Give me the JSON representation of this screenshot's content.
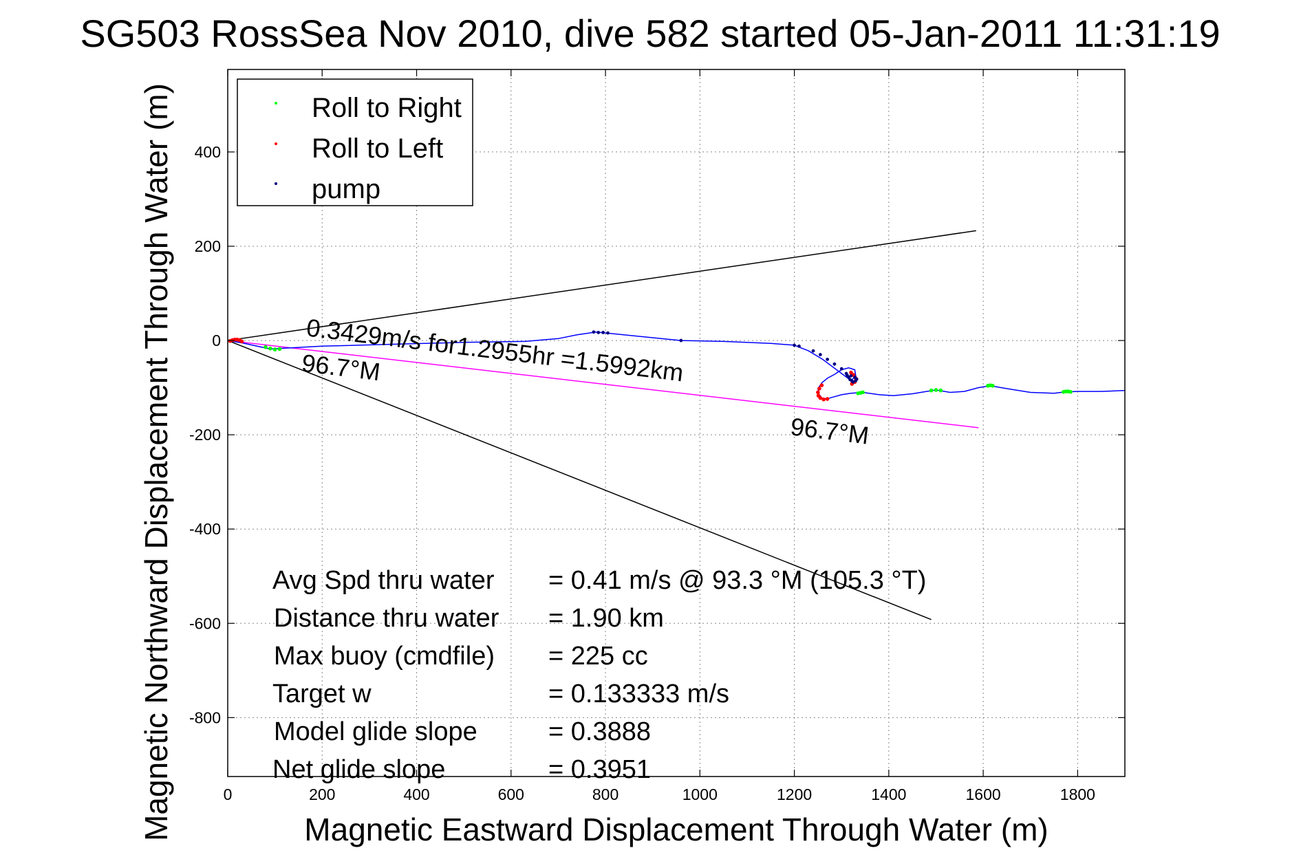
{
  "chart_data": {
    "type": "line",
    "title": "SG503 RossSea Nov 2010, dive 582 started 05-Jan-2011 11:31:19",
    "xlabel": "Magnetic Eastward Displacement Through Water (m)",
    "ylabel": "Magnetic Northward Displacement Through Water (m)",
    "xlim": [
      0,
      1900
    ],
    "ylim": [
      -925,
      575
    ],
    "xticks": [
      0,
      200,
      400,
      600,
      800,
      1000,
      1200,
      1400,
      1600,
      1800
    ],
    "yticks": [
      -800,
      -600,
      -400,
      -200,
      0,
      200,
      400
    ],
    "grid": true,
    "legend_position": "top-left",
    "legend": [
      {
        "label": "Roll to Right",
        "color": "#00ff00"
      },
      {
        "label": "Roll to Left",
        "color": "#ff0000"
      },
      {
        "label": "pump",
        "color": "#000080"
      }
    ],
    "track": {
      "color": "#0000ff",
      "x": [
        0,
        30,
        90,
        200,
        350,
        500,
        630,
        700,
        740,
        780,
        800,
        900,
        960,
        1050,
        1150,
        1200,
        1230,
        1260,
        1280,
        1300,
        1320,
        1330,
        1328,
        1315,
        1300,
        1285,
        1270,
        1258,
        1250,
        1252,
        1260,
        1275,
        1300,
        1320,
        1345,
        1380,
        1410,
        1450,
        1480,
        1500,
        1530,
        1560,
        1590,
        1615,
        1650,
        1700,
        1750,
        1775,
        1800,
        1850,
        1900
      ],
      "y": [
        0,
        -5,
        -18,
        -12,
        -8,
        -4,
        -2,
        4,
        12,
        18,
        16,
        6,
        0,
        -2,
        -6,
        -10,
        -22,
        -40,
        -55,
        -70,
        -85,
        -75,
        -62,
        -58,
        -62,
        -72,
        -80,
        -90,
        -102,
        -114,
        -124,
        -122,
        -115,
        -112,
        -110,
        -115,
        -117,
        -113,
        -108,
        -105,
        -110,
        -108,
        -100,
        -96,
        -102,
        -110,
        -112,
        -109,
        -108,
        -108,
        -106
      ]
    },
    "roll_right": {
      "color": "#00ff00",
      "x": [
        80,
        90,
        100,
        110,
        1335,
        1340,
        1345,
        1490,
        1500,
        1510,
        1610,
        1615,
        1620,
        1770,
        1775,
        1780,
        1785
      ],
      "y": [
        -14,
        -17,
        -19,
        -18,
        -112,
        -111,
        -110,
        -106,
        -105,
        -106,
        -96,
        -95,
        -96,
        -109,
        -108,
        -108,
        -109
      ]
    },
    "roll_left": {
      "color": "#ff0000",
      "x": [
        5,
        10,
        15,
        20,
        25,
        30,
        1320,
        1325,
        1330,
        1328,
        1322,
        1258,
        1253,
        1250,
        1251,
        1255,
        1262,
        1270
      ],
      "y": [
        -1,
        1,
        2,
        2,
        1,
        -2,
        -68,
        -73,
        -80,
        -88,
        -92,
        -95,
        -102,
        -110,
        -117,
        -122,
        -125,
        -124
      ]
    },
    "pump": {
      "color": "#000080",
      "x": [
        775,
        785,
        795,
        805,
        960,
        1200,
        1210,
        1240,
        1255,
        1270,
        1285,
        1300,
        1310,
        1315,
        1318,
        1322,
        1325,
        1330,
        1332,
        1328,
        1320,
        1312
      ],
      "y": [
        18,
        17,
        17,
        16,
        0,
        -10,
        -12,
        -22,
        -30,
        -40,
        -50,
        -60,
        -70,
        -78,
        -83,
        -86,
        -88,
        -85,
        -82,
        -78,
        -75,
        -74
      ]
    },
    "reference_lines": [
      {
        "name": "upper",
        "color": "#000000",
        "x": [
          0,
          1585
        ],
        "y": [
          0,
          233
        ]
      },
      {
        "name": "lower",
        "color": "#000000",
        "x": [
          0,
          1490
        ],
        "y": [
          0,
          -592
        ]
      },
      {
        "name": "heading",
        "color": "#ff00ff",
        "x": [
          0,
          1590
        ],
        "y": [
          0,
          -185
        ]
      }
    ],
    "annotations": [
      {
        "id": "speed",
        "text": "0.3429m/s for1.2955hr =1.5992km",
        "x": 165,
        "y": 10,
        "rotate": 6.9
      },
      {
        "id": "hdg_near",
        "text": "96.7°M",
        "x": 155,
        "y": -65,
        "rotate": 6.9
      },
      {
        "id": "hdg_far",
        "text": "96.7°M",
        "x": 1190,
        "y": -200,
        "rotate": 6.9
      }
    ]
  },
  "stats": [
    {
      "label": "Avg Spd thru water",
      "value": "=  0.41 m/s @  93.3 °M (105.3 °T)"
    },
    {
      "label": "Distance thru water",
      "value": "=  1.90 km"
    },
    {
      "label": "Max buoy (cmdfile)",
      "value": "= 225 cc"
    },
    {
      "label": "Target w",
      "value": "= 0.133333 m/s"
    },
    {
      "label": "Model glide slope",
      "value": "= 0.3888"
    },
    {
      "label": "Net glide slope",
      "value": "= 0.3951"
    }
  ]
}
